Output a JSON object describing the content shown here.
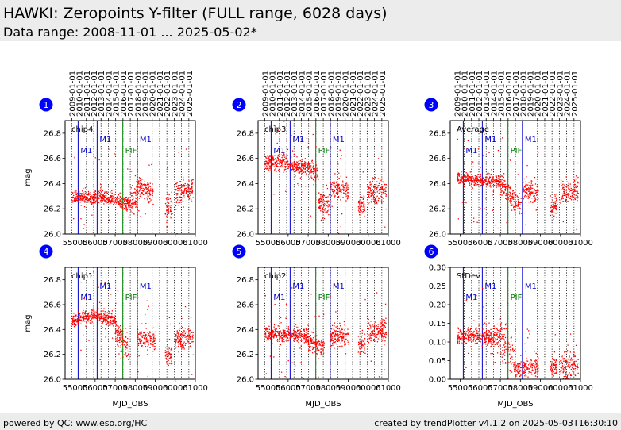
{
  "header": {
    "title": "HAWKI: Zeropoints Y-filter (FULL range, 6028 days)",
    "subtitle": "Data range: 2008-11-01 ... 2025-05-02*"
  },
  "footer": {
    "left": "powered by QC: www.eso.org/HC",
    "right": "created by trendPlotter v4.1.2 on 2025-05-03T16:30:10"
  },
  "colors": {
    "points": "#ff0000",
    "event_blue": "#0000cc",
    "event_green": "#008000",
    "marker": "#0000ff"
  },
  "chart_data": {
    "type": "scatter",
    "xlabel": "MJD_OBS",
    "xlim": [
      54500,
      61000
    ],
    "x_ticks": [
      55000,
      56000,
      57000,
      58000,
      59000,
      60000,
      61000
    ],
    "top_ticks": [
      {
        "mjd": 54832,
        "label": "2009-01-01"
      },
      {
        "mjd": 55197,
        "label": "2010-01-01"
      },
      {
        "mjd": 55562,
        "label": "2011-01-01"
      },
      {
        "mjd": 55927,
        "label": "2012-01-01"
      },
      {
        "mjd": 56293,
        "label": "2013-01-01"
      },
      {
        "mjd": 56658,
        "label": "2014-01-01"
      },
      {
        "mjd": 57023,
        "label": "2015-01-01"
      },
      {
        "mjd": 57388,
        "label": "2016-01-01"
      },
      {
        "mjd": 57754,
        "label": "2017-01-01"
      },
      {
        "mjd": 58119,
        "label": "2018-01-01"
      },
      {
        "mjd": 58484,
        "label": "2019-01-01"
      },
      {
        "mjd": 58849,
        "label": "2020-01-01"
      },
      {
        "mjd": 59215,
        "label": "2021-01-01"
      },
      {
        "mjd": 59580,
        "label": "2022-01-01"
      },
      {
        "mjd": 59945,
        "label": "2023-01-01"
      },
      {
        "mjd": 60310,
        "label": "2024-01-01"
      },
      {
        "mjd": 60676,
        "label": "2025-01-01"
      }
    ],
    "events": [
      {
        "mjd": 55150,
        "label": "M1",
        "color": "#0000cc",
        "level": "low"
      },
      {
        "mjd": 56100,
        "label": "M1",
        "color": "#0000cc",
        "level": "high"
      },
      {
        "mjd": 57380,
        "label": "PIF",
        "color": "#008000",
        "level": "low"
      },
      {
        "mjd": 58100,
        "label": "M1",
        "color": "#0000cc",
        "level": "high"
      }
    ],
    "panels": [
      {
        "marker": "1",
        "label": "chip4",
        "ylabel": "mag",
        "ylim": [
          26.0,
          26.9
        ],
        "y_ticks": [
          26.0,
          26.2,
          26.4,
          26.6,
          26.8
        ],
        "segments": [
          {
            "x": [
              54850,
              56000
            ],
            "y": [
              26.3,
              26.28
            ],
            "sd": 0.025
          },
          {
            "x": [
              56000,
              57000
            ],
            "y": [
              26.3,
              26.28
            ],
            "sd": 0.025
          },
          {
            "x": [
              57000,
              57700
            ],
            "y": [
              26.26,
              26.24
            ],
            "sd": 0.03
          },
          {
            "x": [
              57700,
              58100
            ],
            "y": [
              26.25,
              26.28
            ],
            "sd": 0.05
          },
          {
            "x": [
              58100,
              58900
            ],
            "y": [
              26.37,
              26.33
            ],
            "sd": 0.04
          },
          {
            "x": [
              59500,
              59850
            ],
            "y": [
              26.2,
              26.24
            ],
            "sd": 0.05
          },
          {
            "x": [
              60000,
              60900
            ],
            "y": [
              26.32,
              26.36
            ],
            "sd": 0.05
          }
        ]
      },
      {
        "marker": "2",
        "label": "chip3",
        "ylabel": "",
        "ylim": [
          26.0,
          26.9
        ],
        "y_ticks": [
          26.0,
          26.2,
          26.4,
          26.6,
          26.8
        ],
        "segments": [
          {
            "x": [
              54850,
              56000
            ],
            "y": [
              26.57,
              26.58
            ],
            "sd": 0.035
          },
          {
            "x": [
              56000,
              57000
            ],
            "y": [
              26.56,
              26.52
            ],
            "sd": 0.03
          },
          {
            "x": [
              57000,
              57500
            ],
            "y": [
              26.52,
              26.47
            ],
            "sd": 0.04
          },
          {
            "x": [
              57500,
              58050
            ],
            "y": [
              26.27,
              26.22
            ],
            "sd": 0.04
          },
          {
            "x": [
              58100,
              59000
            ],
            "y": [
              26.38,
              26.33
            ],
            "sd": 0.04
          },
          {
            "x": [
              59500,
              59850
            ],
            "y": [
              26.2,
              26.25
            ],
            "sd": 0.05
          },
          {
            "x": [
              60000,
              60900
            ],
            "y": [
              26.33,
              26.36
            ],
            "sd": 0.05
          }
        ]
      },
      {
        "marker": "3",
        "label": "Average",
        "ylabel": "",
        "ylim": [
          26.0,
          26.9
        ],
        "y_ticks": [
          26.0,
          26.2,
          26.4,
          26.6,
          26.8
        ],
        "segments": [
          {
            "x": [
              54850,
              56000
            ],
            "y": [
              26.44,
              26.43
            ],
            "sd": 0.025
          },
          {
            "x": [
              56000,
              57000
            ],
            "y": [
              26.43,
              26.41
            ],
            "sd": 0.025
          },
          {
            "x": [
              57000,
              57500
            ],
            "y": [
              26.38,
              26.33
            ],
            "sd": 0.04
          },
          {
            "x": [
              57500,
              58050
            ],
            "y": [
              26.27,
              26.22
            ],
            "sd": 0.04
          },
          {
            "x": [
              58100,
              58900
            ],
            "y": [
              26.36,
              26.32
            ],
            "sd": 0.04
          },
          {
            "x": [
              59500,
              59850
            ],
            "y": [
              26.2,
              26.26
            ],
            "sd": 0.05
          },
          {
            "x": [
              60000,
              60900
            ],
            "y": [
              26.33,
              26.36
            ],
            "sd": 0.05
          }
        ]
      },
      {
        "marker": "4",
        "label": "chip1",
        "ylabel": "mag",
        "ylim": [
          26.0,
          26.9
        ],
        "y_ticks": [
          26.0,
          26.2,
          26.4,
          26.6,
          26.8
        ],
        "segments": [
          {
            "x": [
              54850,
              56000
            ],
            "y": [
              26.48,
              26.52
            ],
            "sd": 0.03
          },
          {
            "x": [
              56000,
              57000
            ],
            "y": [
              26.52,
              26.47
            ],
            "sd": 0.03
          },
          {
            "x": [
              57000,
              57700
            ],
            "y": [
              26.4,
              26.22
            ],
            "sd": 0.05
          },
          {
            "x": [
              58100,
              59000
            ],
            "y": [
              26.35,
              26.29
            ],
            "sd": 0.04
          },
          {
            "x": [
              59500,
              59850
            ],
            "y": [
              26.2,
              26.18
            ],
            "sd": 0.05
          },
          {
            "x": [
              60000,
              60900
            ],
            "y": [
              26.32,
              26.35
            ],
            "sd": 0.04
          }
        ]
      },
      {
        "marker": "5",
        "label": "chip2",
        "ylabel": "",
        "ylim": [
          26.0,
          26.9
        ],
        "y_ticks": [
          26.0,
          26.2,
          26.4,
          26.6,
          26.8
        ],
        "segments": [
          {
            "x": [
              54850,
              56000
            ],
            "y": [
              26.36,
              26.36
            ],
            "sd": 0.03
          },
          {
            "x": [
              56000,
              57000
            ],
            "y": [
              26.37,
              26.34
            ],
            "sd": 0.03
          },
          {
            "x": [
              57000,
              57800
            ],
            "y": [
              26.3,
              26.26
            ],
            "sd": 0.04
          },
          {
            "x": [
              58100,
              59000
            ],
            "y": [
              26.35,
              26.34
            ],
            "sd": 0.04
          },
          {
            "x": [
              59500,
              59850
            ],
            "y": [
              26.27,
              26.3
            ],
            "sd": 0.05
          },
          {
            "x": [
              60000,
              60900
            ],
            "y": [
              26.38,
              26.4
            ],
            "sd": 0.05
          }
        ]
      },
      {
        "marker": "6",
        "label": "StDev",
        "ylabel": "",
        "ylim": [
          0.0,
          0.3
        ],
        "y_ticks": [
          0.0,
          0.05,
          0.1,
          0.15,
          0.2,
          0.25,
          0.3
        ],
        "segments": [
          {
            "x": [
              54850,
              56000
            ],
            "y": [
              0.115,
              0.12
            ],
            "sd": 0.012
          },
          {
            "x": [
              56000,
              57000
            ],
            "y": [
              0.12,
              0.11
            ],
            "sd": 0.015
          },
          {
            "x": [
              57000,
              57700
            ],
            "y": [
              0.11,
              0.05
            ],
            "sd": 0.03
          },
          {
            "x": [
              57700,
              58900
            ],
            "y": [
              0.03,
              0.03
            ],
            "sd": 0.012
          },
          {
            "x": [
              59500,
              59850
            ],
            "y": [
              0.03,
              0.035
            ],
            "sd": 0.015
          },
          {
            "x": [
              60000,
              60900
            ],
            "y": [
              0.03,
              0.04
            ],
            "sd": 0.02
          }
        ]
      }
    ]
  }
}
